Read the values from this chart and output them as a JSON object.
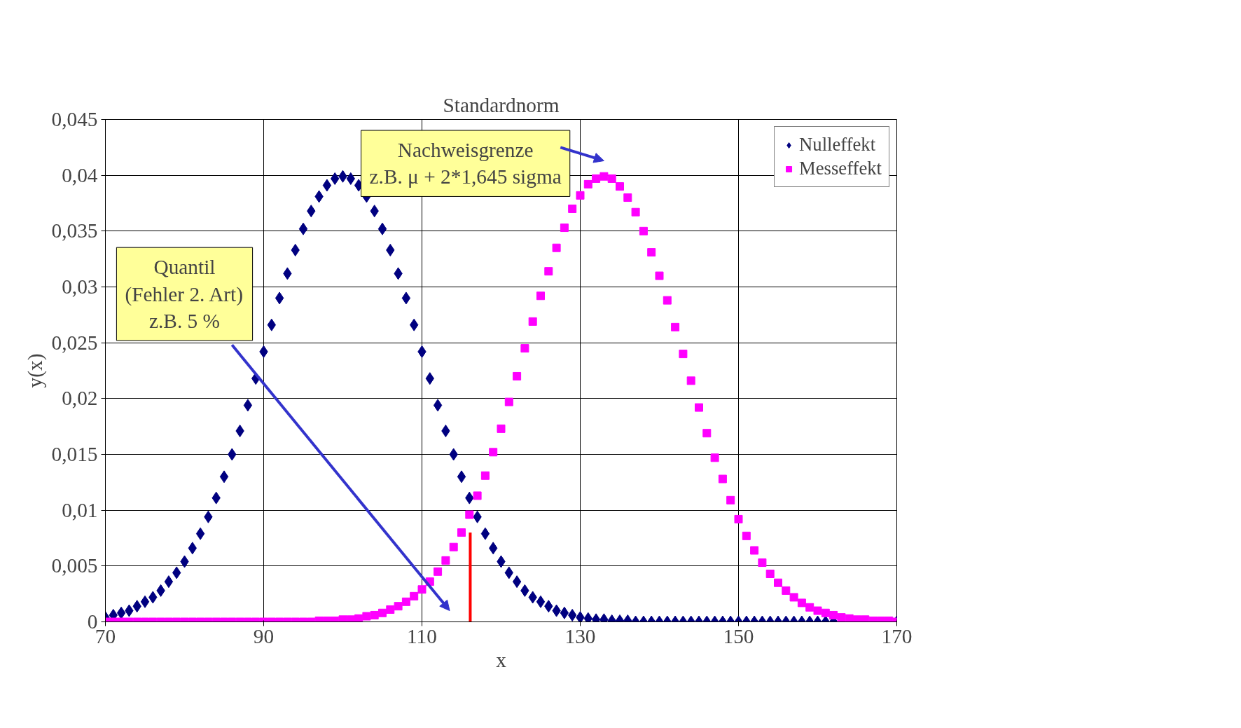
{
  "chart_data": {
    "type": "scatter",
    "title": "Standardnorm",
    "xlabel": "x",
    "ylabel": "y(x)",
    "x": [
      70,
      71,
      72,
      73,
      74,
      75,
      76,
      77,
      78,
      79,
      80,
      81,
      82,
      83,
      84,
      85,
      86,
      87,
      88,
      89,
      90,
      91,
      92,
      93,
      94,
      95,
      96,
      97,
      98,
      99,
      100,
      101,
      102,
      103,
      104,
      105,
      106,
      107,
      108,
      109,
      110,
      111,
      112,
      113,
      114,
      115,
      116,
      117,
      118,
      119,
      120,
      121,
      122,
      123,
      124,
      125,
      126,
      127,
      128,
      129,
      130,
      131,
      132,
      133,
      134,
      135,
      136,
      137,
      138,
      139,
      140,
      141,
      142,
      143,
      144,
      145,
      146,
      147,
      148,
      149,
      150,
      151,
      152,
      153,
      154,
      155,
      156,
      157,
      158,
      159,
      160,
      161,
      162,
      163,
      164,
      165,
      166,
      167,
      168,
      169,
      170
    ],
    "series": [
      {
        "name": "Nulleffekt",
        "color": "#000080",
        "marker": "diamond",
        "values": [
          0.0004,
          0.0006,
          0.0008,
          0.001,
          0.0014,
          0.0018,
          0.0022,
          0.0028,
          0.0036,
          0.0044,
          0.0054,
          0.0066,
          0.0079,
          0.0094,
          0.0111,
          0.013,
          0.015,
          0.0171,
          0.0194,
          0.0218,
          0.0242,
          0.0266,
          0.029,
          0.0312,
          0.0333,
          0.0352,
          0.0368,
          0.0381,
          0.0391,
          0.0397,
          0.0399,
          0.0397,
          0.0391,
          0.0381,
          0.0368,
          0.0352,
          0.0333,
          0.0312,
          0.029,
          0.0266,
          0.0242,
          0.0218,
          0.0194,
          0.0171,
          0.015,
          0.013,
          0.0111,
          0.0094,
          0.0079,
          0.0066,
          0.0054,
          0.0044,
          0.0036,
          0.0028,
          0.0022,
          0.0018,
          0.0014,
          0.001,
          0.0008,
          0.0006,
          0.0004,
          0.0003,
          0.0002,
          0.0002,
          0.0001,
          0.0001,
          0.0001,
          0,
          0,
          0,
          0,
          0,
          0,
          0,
          0,
          0,
          0,
          0,
          0,
          0,
          0,
          0,
          0,
          0,
          0,
          0,
          0,
          0,
          0,
          0,
          0,
          0,
          0,
          0,
          null,
          null,
          null,
          null,
          null,
          null,
          0
        ]
      },
      {
        "name": "Messeffekt",
        "color": "#ff00ff",
        "marker": "square",
        "values": [
          0,
          0,
          0,
          0,
          0,
          0,
          0,
          0,
          0,
          0,
          0,
          0,
          0,
          0,
          0,
          0,
          0,
          0,
          0,
          0,
          0,
          0,
          0,
          0,
          0,
          0,
          0,
          0.0001,
          0.0001,
          0.0001,
          0.0002,
          0.0002,
          0.0003,
          0.0005,
          0.0006,
          0.0008,
          0.0011,
          0.0014,
          0.0018,
          0.0023,
          0.0029,
          0.0036,
          0.0045,
          0.0055,
          0.0067,
          0.008,
          0.0096,
          0.0113,
          0.0131,
          0.0152,
          0.0173,
          0.0197,
          0.022,
          0.0245,
          0.0269,
          0.0292,
          0.0314,
          0.0335,
          0.0353,
          0.037,
          0.0382,
          0.0392,
          0.0397,
          0.0399,
          0.0397,
          0.039,
          0.038,
          0.0367,
          0.035,
          0.0331,
          0.031,
          0.0288,
          0.0264,
          0.024,
          0.0216,
          0.0192,
          0.0169,
          0.0147,
          0.0128,
          0.0109,
          0.0092,
          0.0077,
          0.0064,
          0.0053,
          0.0043,
          0.0035,
          0.0028,
          0.0022,
          0.0017,
          0.0013,
          0.001,
          0.0008,
          0.0006,
          0.0004,
          0.0003,
          0.0002,
          0.0002,
          0.0001,
          0.0001,
          0.0001,
          0
        ]
      },
      {
        "type": "line",
        "color": "#ff0000",
        "x": [
          116.1,
          116.1
        ],
        "values": [
          0,
          0.008
        ]
      }
    ],
    "xlim": [
      70,
      170
    ],
    "xticks": [
      70,
      90,
      110,
      130,
      150,
      170
    ],
    "ylim": [
      0,
      0.045
    ],
    "yticks": [
      0,
      {
        "value": 0.005,
        "label": "0,005"
      },
      {
        "value": 0.01,
        "label": "0,01"
      },
      {
        "value": 0.015,
        "label": "0,015"
      },
      {
        "value": 0.02,
        "label": "0,02"
      },
      {
        "value": 0.025,
        "label": "0,025"
      },
      {
        "value": 0.03,
        "label": "0,03"
      },
      {
        "value": 0.035,
        "label": "0,035"
      },
      {
        "value": 0.04,
        "label": "0,04"
      },
      {
        "value": 0.045,
        "label": "0,045"
      }
    ],
    "grid": true,
    "legend": "top right",
    "annotations": [
      "Quantil\n(Fehler 2. Art)\nz.B. 5 %",
      "Nachweisgrenze\nz.B. μ + 2*1,645 sigma"
    ]
  }
}
